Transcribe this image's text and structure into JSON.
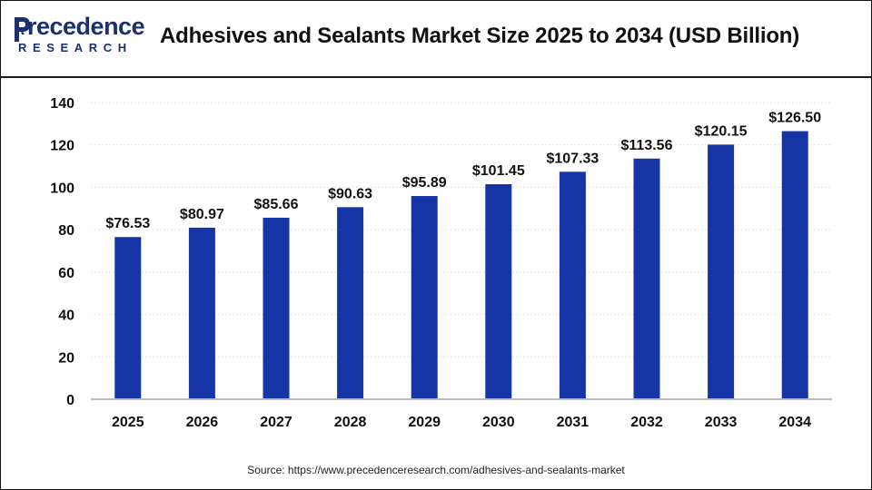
{
  "header": {
    "logo_main": "recedence",
    "logo_initial": "P",
    "logo_sub": "RESEARCH",
    "title": "Adhesives and Sealants Market Size 2025 to 2034 (USD Billion)"
  },
  "source": "Source: https://www.precedenceresearch.com/adhesives-and-sealants-market",
  "colors": {
    "bar": "#1535a6",
    "grid": "#e4e4e4",
    "axis": "#bbbbbb",
    "text": "#111111",
    "brand": "#1c2f6e"
  },
  "chart_data": {
    "type": "bar",
    "title": "Adhesives and Sealants Market Size 2025 to 2034 (USD Billion)",
    "xlabel": "",
    "ylabel": "",
    "categories": [
      "2025",
      "2026",
      "2027",
      "2028",
      "2029",
      "2030",
      "2031",
      "2032",
      "2033",
      "2034"
    ],
    "values": [
      76.53,
      80.97,
      85.66,
      90.63,
      95.89,
      101.45,
      107.33,
      113.56,
      120.15,
      126.5
    ],
    "data_labels": [
      "$76.53",
      "$80.97",
      "$85.66",
      "$90.63",
      "$95.89",
      "$101.45",
      "$107.33",
      "$113.56",
      "$120.15",
      "$126.50"
    ],
    "ylim": [
      0,
      140
    ],
    "yticks": [
      0,
      20,
      40,
      60,
      80,
      100,
      120,
      140
    ],
    "grid": true,
    "legend": "none"
  }
}
